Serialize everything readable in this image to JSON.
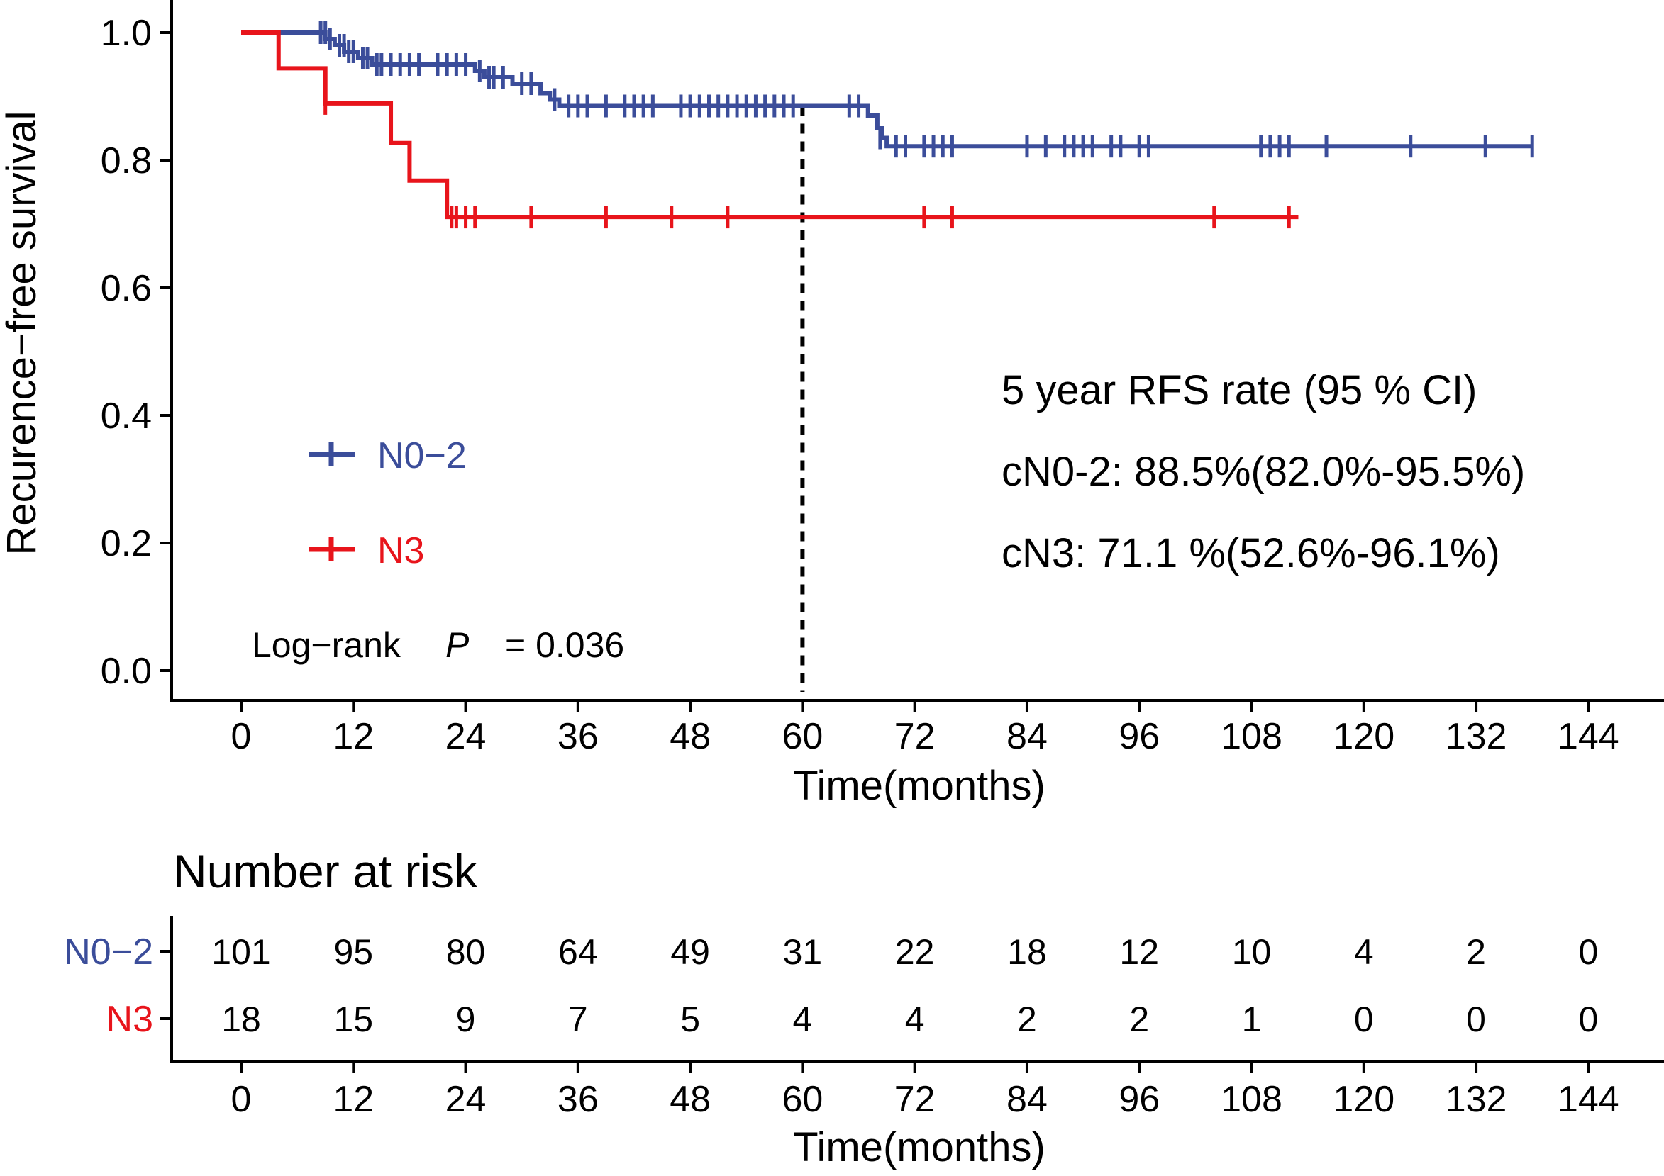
{
  "colors": {
    "n02": "#3B4D9A",
    "n3": "#E8141B",
    "axis": "#000000"
  },
  "chart_data": {
    "type": "line",
    "subtype": "kaplan-meier",
    "title": "",
    "xlabel": "Time(months)",
    "ylabel": "Recurence−free survival",
    "xlim": [
      -10,
      150
    ],
    "ylim": [
      0,
      1
    ],
    "xticks": [
      0,
      12,
      24,
      36,
      48,
      60,
      72,
      84,
      96,
      108,
      120,
      132,
      144
    ],
    "xtick_labels": [
      "0",
      "12",
      "24",
      "36",
      "48",
      "60",
      "72",
      "84",
      "96",
      "108",
      "120",
      "132",
      "144"
    ],
    "yticks": [
      0,
      0.2,
      0.4,
      0.6,
      0.8,
      1.0
    ],
    "ytick_labels": [
      "0.0",
      "0.2",
      "0.4",
      "0.6",
      "0.8",
      "1.0"
    ],
    "reference_line_x": 60,
    "series": [
      {
        "name": "N0−2",
        "color": "#3B4D9A",
        "steps": [
          [
            0,
            1.0
          ],
          [
            9,
            0.99
          ],
          [
            10,
            0.98
          ],
          [
            11,
            0.97
          ],
          [
            12.5,
            0.96
          ],
          [
            14,
            0.95
          ],
          [
            25,
            0.94
          ],
          [
            26,
            0.93
          ],
          [
            29,
            0.92
          ],
          [
            32,
            0.905
          ],
          [
            33,
            0.895
          ],
          [
            34,
            0.885
          ],
          [
            67,
            0.87
          ],
          [
            68,
            0.85
          ],
          [
            68.5,
            0.835
          ],
          [
            69,
            0.822
          ],
          [
            138,
            0.822
          ]
        ],
        "censors": [
          [
            8.5,
            1.0
          ],
          [
            9,
            1.0
          ],
          [
            9.5,
            0.99
          ],
          [
            10.5,
            0.98
          ],
          [
            11,
            0.98
          ],
          [
            11.5,
            0.97
          ],
          [
            12,
            0.97
          ],
          [
            13,
            0.96
          ],
          [
            13.5,
            0.96
          ],
          [
            14.5,
            0.95
          ],
          [
            15,
            0.95
          ],
          [
            16,
            0.95
          ],
          [
            17,
            0.95
          ],
          [
            18,
            0.95
          ],
          [
            19,
            0.95
          ],
          [
            21,
            0.95
          ],
          [
            22,
            0.95
          ],
          [
            23,
            0.95
          ],
          [
            24,
            0.95
          ],
          [
            25.5,
            0.94
          ],
          [
            26.5,
            0.93
          ],
          [
            27,
            0.93
          ],
          [
            28,
            0.93
          ],
          [
            30,
            0.92
          ],
          [
            31,
            0.92
          ],
          [
            33.5,
            0.895
          ],
          [
            35,
            0.885
          ],
          [
            36,
            0.885
          ],
          [
            37,
            0.885
          ],
          [
            39,
            0.885
          ],
          [
            41,
            0.885
          ],
          [
            42,
            0.885
          ],
          [
            43,
            0.885
          ],
          [
            44,
            0.885
          ],
          [
            47,
            0.885
          ],
          [
            48,
            0.885
          ],
          [
            49,
            0.885
          ],
          [
            50,
            0.885
          ],
          [
            51,
            0.885
          ],
          [
            52,
            0.885
          ],
          [
            53,
            0.885
          ],
          [
            54,
            0.885
          ],
          [
            55,
            0.885
          ],
          [
            56,
            0.885
          ],
          [
            57,
            0.885
          ],
          [
            58,
            0.885
          ],
          [
            59,
            0.885
          ],
          [
            65,
            0.885
          ],
          [
            66,
            0.885
          ],
          [
            68.3,
            0.835
          ],
          [
            70,
            0.822
          ],
          [
            71,
            0.822
          ],
          [
            73,
            0.822
          ],
          [
            74,
            0.822
          ],
          [
            75,
            0.822
          ],
          [
            76,
            0.822
          ],
          [
            84,
            0.822
          ],
          [
            86,
            0.822
          ],
          [
            88,
            0.822
          ],
          [
            89,
            0.822
          ],
          [
            90,
            0.822
          ],
          [
            91,
            0.822
          ],
          [
            93,
            0.822
          ],
          [
            94,
            0.822
          ],
          [
            96,
            0.822
          ],
          [
            97,
            0.822
          ],
          [
            109,
            0.822
          ],
          [
            110,
            0.822
          ],
          [
            111,
            0.822
          ],
          [
            112,
            0.822
          ],
          [
            116,
            0.822
          ],
          [
            125,
            0.822
          ],
          [
            133,
            0.822
          ],
          [
            138,
            0.822
          ]
        ]
      },
      {
        "name": "N3",
        "color": "#E8141B",
        "steps": [
          [
            0,
            1.0
          ],
          [
            4,
            0.944
          ],
          [
            9,
            0.889
          ],
          [
            16,
            0.827
          ],
          [
            18,
            0.768
          ],
          [
            22,
            0.711
          ],
          [
            113,
            0.711
          ]
        ],
        "censors": [
          [
            9,
            0.889
          ],
          [
            22.5,
            0.711
          ],
          [
            23,
            0.711
          ],
          [
            24,
            0.711
          ],
          [
            25,
            0.711
          ],
          [
            31,
            0.711
          ],
          [
            39,
            0.711
          ],
          [
            46,
            0.711
          ],
          [
            52,
            0.711
          ],
          [
            73,
            0.711
          ],
          [
            76,
            0.711
          ],
          [
            104,
            0.711
          ],
          [
            112,
            0.711
          ]
        ]
      }
    ],
    "legend": [
      {
        "label": "N0−2",
        "color": "#3B4D9A"
      },
      {
        "label": "N3",
        "color": "#E8141B"
      }
    ],
    "legend_position": "center-left",
    "annotations": {
      "pvalue_prefix": "Log−rank",
      "pvalue_p": "P",
      "pvalue_value": "= 0.036",
      "rfs_header": "5 year RFS rate (95 % CI)",
      "rfs_n02": "cN0-2: 88.5%(82.0%-95.5%)",
      "rfs_n3": "cN3: 71.1 %(52.6%-96.1%)"
    },
    "risk_table": {
      "title": "Number at risk",
      "xlabel": "Time(months)",
      "times": [
        0,
        12,
        24,
        36,
        48,
        60,
        72,
        84,
        96,
        108,
        120,
        132,
        144
      ],
      "rows": [
        {
          "label": "N0−2",
          "color": "#3B4D9A",
          "values": [
            "101",
            "95",
            "80",
            "64",
            "49",
            "31",
            "22",
            "18",
            "12",
            "10",
            "4",
            "2",
            "0"
          ]
        },
        {
          "label": "N3",
          "color": "#E8141B",
          "values": [
            "18",
            "15",
            "9",
            "7",
            "5",
            "4",
            "4",
            "2",
            "2",
            "1",
            "0",
            "0",
            "0"
          ]
        }
      ]
    }
  }
}
